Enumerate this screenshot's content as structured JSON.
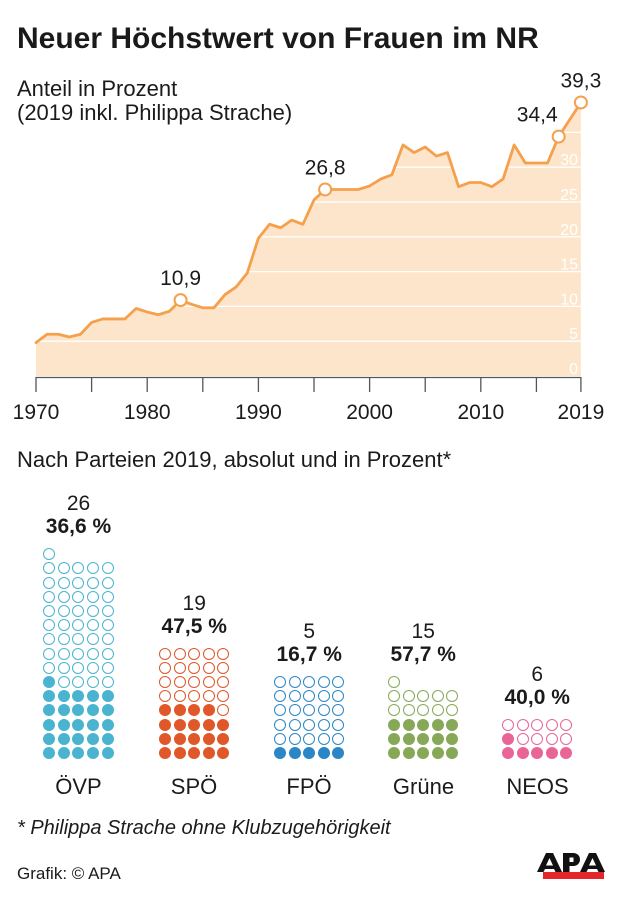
{
  "title": "Neuer Höchstwert von Frauen im NR",
  "subtitle": [
    "Anteil in Prozent",
    "(2019 inkl. Philippa Strache)"
  ],
  "section_heading": "Nach Parteien 2019, absolut und in Prozent*",
  "footnote": "* Philippa Strache ohne Klubzugehörigkeit",
  "credit": "Grafik: © APA",
  "logo": {
    "text": "APA",
    "letter_color": "#111111",
    "bar_color": "#e4262c"
  },
  "chart_data": [
    {
      "type": "area",
      "title": "Neuer Höchstwert von Frauen im NR",
      "ylabel": "Anteil in Prozent",
      "note": "(2019 inkl. Philippa Strache)",
      "xlabel": "",
      "x": [
        1970,
        1971,
        1972,
        1973,
        1974,
        1975,
        1976,
        1977,
        1978,
        1979,
        1980,
        1981,
        1982,
        1983,
        1984,
        1985,
        1986,
        1987,
        1988,
        1989,
        1990,
        1991,
        1992,
        1993,
        1994,
        1995,
        1996,
        1997,
        1998,
        1999,
        2000,
        2001,
        2002,
        2003,
        2004,
        2005,
        2006,
        2007,
        2008,
        2009,
        2010,
        2011,
        2012,
        2013,
        2014,
        2015,
        2016,
        2017,
        2019
      ],
      "values": [
        4.8,
        6.0,
        6.0,
        5.6,
        6.0,
        7.7,
        8.2,
        8.2,
        8.2,
        9.7,
        9.2,
        8.8,
        9.3,
        10.9,
        10.3,
        9.8,
        9.8,
        11.7,
        12.8,
        14.8,
        19.8,
        21.8,
        21.3,
        22.4,
        21.8,
        25.3,
        26.8,
        26.8,
        26.8,
        26.8,
        27.3,
        28.3,
        28.9,
        33.2,
        32.1,
        32.9,
        31.6,
        32.1,
        27.2,
        27.8,
        27.8,
        27.2,
        28.3,
        33.2,
        30.6,
        30.6,
        30.6,
        34.4,
        39.3
      ],
      "xlim": [
        1970,
        2019
      ],
      "ylim": [
        0,
        40
      ],
      "x_ticks": [
        1970,
        1975,
        1980,
        1985,
        1990,
        1995,
        2000,
        2005,
        2010,
        2015,
        2019
      ],
      "x_tick_labels": [
        "1970",
        "1980",
        "1990",
        "2000",
        "2010",
        "2019"
      ],
      "y_ticks": [
        0,
        5,
        10,
        15,
        20,
        25,
        30
      ],
      "y_tick_labels": [
        "0",
        "5",
        "10",
        "15",
        "20",
        "25",
        "30"
      ],
      "gridlines": [
        5,
        10,
        15,
        20,
        25,
        30,
        35
      ],
      "grid": true,
      "annotations": [
        {
          "x": 1983,
          "y": 10.9,
          "label": "10,9",
          "label_pos": "above"
        },
        {
          "x": 1996,
          "y": 26.8,
          "label": "26,8",
          "label_pos": "above"
        },
        {
          "x": 2017,
          "y": 34.4,
          "label": "34,4",
          "label_pos": "above-left"
        },
        {
          "x": 2019,
          "y": 39.3,
          "label": "39,3",
          "label_pos": "above"
        }
      ],
      "line_color": "#f5a04c",
      "fill_color": "#fde5cb",
      "axis_color": "#555555"
    },
    {
      "type": "bar",
      "style": "pictogram",
      "title": "Nach Parteien 2019, absolut und in Prozent*",
      "categories": [
        "ÖVP",
        "SPÖ",
        "FPÖ",
        "Grüne",
        "NEOS"
      ],
      "parties": [
        {
          "name": "ÖVP",
          "women": 26,
          "women_label": "26",
          "percent": 36.6,
          "percent_label": "36,6 %",
          "total": 71,
          "color": "#4ab4d0"
        },
        {
          "name": "SPÖ",
          "women": 19,
          "women_label": "19",
          "percent": 47.5,
          "percent_label": "47,5 %",
          "total": 40,
          "color": "#e0572a"
        },
        {
          "name": "FPÖ",
          "women": 5,
          "women_label": "5",
          "percent": 16.7,
          "percent_label": "16,7 %",
          "total": 30,
          "color": "#2b86c8"
        },
        {
          "name": "Grüne",
          "women": 15,
          "women_label": "15",
          "percent": 57.7,
          "percent_label": "57,7 %",
          "total": 26,
          "color": "#87a857"
        },
        {
          "name": "NEOS",
          "women": 6,
          "women_label": "6",
          "percent": 40.0,
          "percent_label": "40,0 %",
          "total": 15,
          "color": "#ea6597"
        }
      ]
    }
  ]
}
